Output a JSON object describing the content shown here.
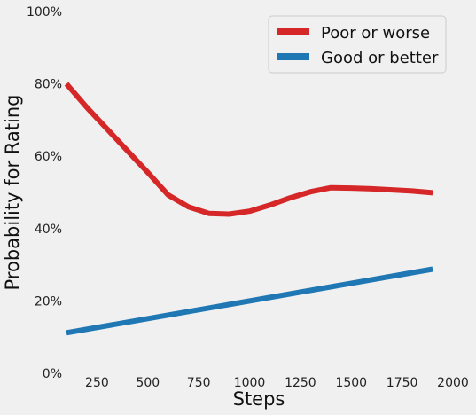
{
  "chart_data": {
    "type": "line",
    "title": "",
    "xlabel": "Steps",
    "ylabel": "Probability for Rating",
    "xlim": [
      100,
      2000
    ],
    "ylim": [
      0,
      100
    ],
    "x_ticks": [
      250,
      500,
      750,
      1000,
      1250,
      1500,
      1750,
      2000
    ],
    "y_ticks": [
      0,
      20,
      40,
      60,
      80,
      100
    ],
    "y_tick_labels": [
      "0%",
      "20%",
      "40%",
      "60%",
      "80%",
      "100%"
    ],
    "grid": false,
    "legend_position": "top-right",
    "series": [
      {
        "name": "Poor or worse",
        "color": "#d62728",
        "x": [
          100,
          200,
          300,
          400,
          500,
          600,
          700,
          800,
          900,
          1000,
          1100,
          1200,
          1300,
          1400,
          1500,
          1600,
          1700,
          1800,
          1900
        ],
        "y": [
          80.0,
          73.5,
          67.5,
          61.5,
          55.5,
          49.3,
          46.0,
          44.2,
          44.0,
          44.8,
          46.5,
          48.5,
          50.2,
          51.3,
          51.2,
          51.0,
          50.7,
          50.4,
          49.9
        ]
      },
      {
        "name": "Good or better",
        "color": "#1f77b4",
        "x": [
          100,
          1900
        ],
        "y": [
          11.2,
          28.8
        ]
      }
    ]
  }
}
